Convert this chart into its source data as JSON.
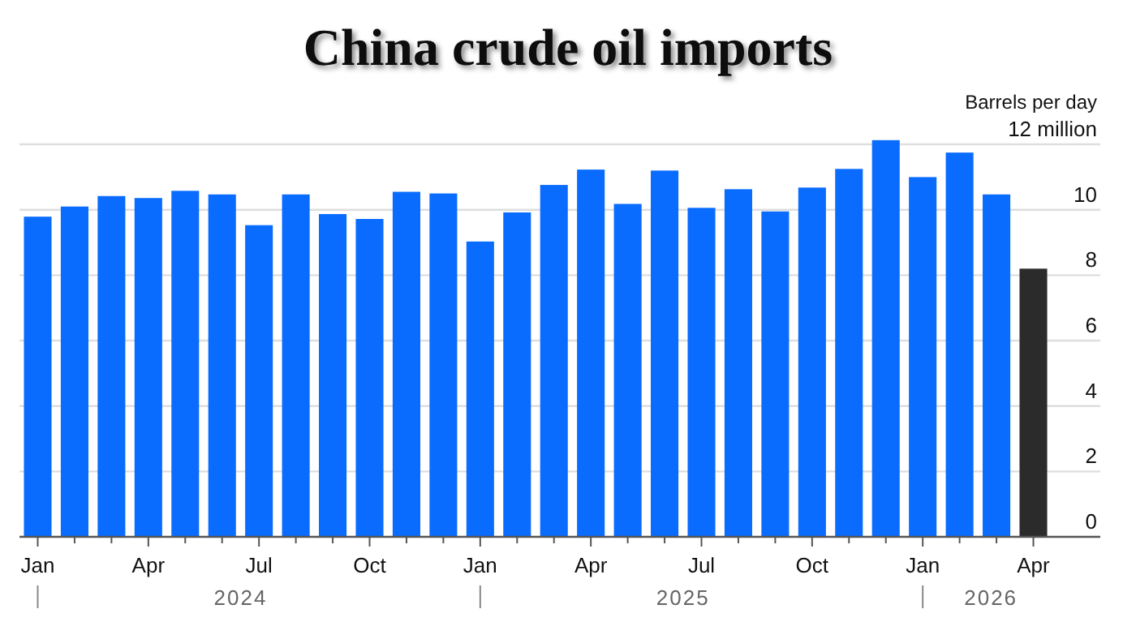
{
  "chart_data": {
    "type": "bar",
    "title": "China crude oil imports",
    "ylabel": "Barrels per day",
    "categories": [
      "Jan",
      null,
      null,
      "Apr",
      null,
      null,
      "Jul",
      null,
      null,
      "Oct",
      null,
      null,
      "Jan",
      null,
      null,
      "Apr",
      null,
      null,
      "Jul",
      null,
      null,
      "Oct",
      null,
      null,
      "Jan",
      null,
      null,
      "Apr"
    ],
    "values": [
      9.79,
      10.1,
      10.42,
      10.36,
      10.58,
      10.47,
      9.53,
      10.47,
      9.87,
      9.72,
      10.55,
      10.5,
      9.03,
      9.92,
      10.76,
      11.23,
      10.18,
      11.2,
      10.06,
      10.63,
      9.95,
      10.68,
      11.25,
      12.13,
      11.0,
      11.75,
      10.47,
      8.2
    ],
    "colors": [
      "#0a6cff",
      "#0a6cff",
      "#0a6cff",
      "#0a6cff",
      "#0a6cff",
      "#0a6cff",
      "#0a6cff",
      "#0a6cff",
      "#0a6cff",
      "#0a6cff",
      "#0a6cff",
      "#0a6cff",
      "#0a6cff",
      "#0a6cff",
      "#0a6cff",
      "#0a6cff",
      "#0a6cff",
      "#0a6cff",
      "#0a6cff",
      "#0a6cff",
      "#0a6cff",
      "#0a6cff",
      "#0a6cff",
      "#0a6cff",
      "#0a6cff",
      "#0a6cff",
      "#0a6cff",
      "#2b2b2b"
    ],
    "ylim": [
      0,
      12.2
    ],
    "yticks": [
      0,
      2,
      4,
      6,
      8,
      10,
      {
        "value": 12,
        "label": "12 million"
      }
    ],
    "grid": "y",
    "annotations": [
      "2024",
      "2025",
      "2026"
    ]
  }
}
